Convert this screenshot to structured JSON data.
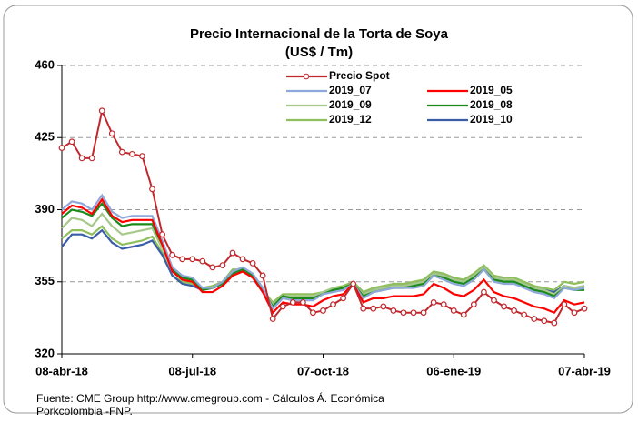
{
  "chart_data": {
    "type": "line",
    "title": "Precio Internacional de la Torta de Soya",
    "subtitle": "(US$ / Tm)",
    "x": [
      "2018-04-08",
      "2018-04-15",
      "2018-04-22",
      "2018-04-29",
      "2018-05-06",
      "2018-05-13",
      "2018-05-20",
      "2018-05-27",
      "2018-06-03",
      "2018-06-10",
      "2018-06-17",
      "2018-06-24",
      "2018-07-01",
      "2018-07-08",
      "2018-07-15",
      "2018-07-22",
      "2018-07-29",
      "2018-08-05",
      "2018-08-12",
      "2018-08-19",
      "2018-08-26",
      "2018-09-02",
      "2018-09-09",
      "2018-09-16",
      "2018-09-23",
      "2018-09-30",
      "2018-10-07",
      "2018-10-14",
      "2018-10-21",
      "2018-10-28",
      "2018-11-04",
      "2018-11-11",
      "2018-11-18",
      "2018-11-25",
      "2018-12-02",
      "2018-12-09",
      "2018-12-16",
      "2018-12-23",
      "2018-12-30",
      "2019-01-06",
      "2019-01-13",
      "2019-01-20",
      "2019-01-27",
      "2019-02-03",
      "2019-02-10",
      "2019-02-17",
      "2019-02-24",
      "2019-03-03",
      "2019-03-10",
      "2019-03-17",
      "2019-03-24",
      "2019-03-31",
      "2019-04-07"
    ],
    "xlim": [
      "2018-04-08",
      "2019-04-07"
    ],
    "xticks": [
      {
        "value": "2018-04-08",
        "label": "08-abr-18"
      },
      {
        "value": "2018-07-08",
        "label": "08-jul-18"
      },
      {
        "value": "2018-10-07",
        "label": "07-oct-18"
      },
      {
        "value": "2019-01-06",
        "label": "06-ene-19"
      },
      {
        "value": "2019-04-07",
        "label": "07-abr-19"
      }
    ],
    "ylim": [
      320,
      460
    ],
    "yticks": [
      320,
      355,
      390,
      425,
      460
    ],
    "grid": true,
    "legend": "top",
    "series": [
      {
        "name": "Precio Spot",
        "color": "#c0282d",
        "values": [
          420,
          423,
          415,
          415,
          438,
          427,
          418,
          417,
          416,
          400,
          378,
          368,
          366,
          366,
          365,
          362,
          363,
          369,
          366,
          364,
          358,
          337,
          343,
          345,
          345,
          340,
          341,
          344,
          347,
          354,
          342,
          342,
          343,
          341,
          340,
          340,
          340,
          345,
          344,
          341,
          339,
          344,
          350,
          346,
          343,
          341,
          339,
          337,
          336,
          335,
          344,
          340,
          342
        ]
      },
      {
        "name": "2019_05",
        "color": "#ff0000",
        "values": [
          388,
          392,
          391,
          388,
          395,
          387,
          384,
          385,
          385,
          385,
          373,
          360,
          356,
          355,
          350,
          350,
          353,
          358,
          360,
          357,
          350,
          340,
          345,
          344,
          344,
          343,
          346,
          348,
          349,
          354,
          345,
          347,
          347,
          348,
          348,
          348,
          349,
          354,
          352,
          349,
          348,
          351,
          356,
          350,
          348,
          347,
          345,
          343,
          342,
          340,
          346,
          344,
          345
        ]
      },
      {
        "name": "2019_07",
        "color": "#8fa8dc",
        "values": [
          390,
          394,
          393,
          390,
          397,
          389,
          386,
          387,
          387,
          387,
          375,
          362,
          358,
          357,
          352,
          352,
          355,
          360,
          362,
          359,
          352,
          342,
          347,
          346,
          346,
          346,
          349,
          350,
          351,
          354,
          347,
          350,
          351,
          352,
          352,
          352,
          353,
          358,
          356,
          354,
          353,
          356,
          361,
          355,
          354,
          354,
          352,
          350,
          349,
          347,
          352,
          351,
          352
        ]
      },
      {
        "name": "2019_08",
        "color": "#1a8a1a",
        "values": [
          386,
          390,
          389,
          387,
          393,
          386,
          382,
          383,
          383,
          383,
          373,
          361,
          357,
          356,
          351,
          352,
          354,
          359,
          361,
          358,
          351,
          343,
          348,
          347,
          347,
          347,
          349,
          351,
          352,
          354,
          348,
          350,
          351,
          352,
          352,
          353,
          354,
          358,
          357,
          355,
          354,
          357,
          361,
          356,
          355,
          355,
          353,
          351,
          350,
          348,
          352,
          351,
          351
        ]
      },
      {
        "name": "2019_09",
        "color": "#a6c98a",
        "values": [
          381,
          386,
          385,
          382,
          388,
          382,
          378,
          379,
          380,
          381,
          371,
          360,
          356,
          355,
          351,
          352,
          354,
          360,
          361,
          358,
          351,
          344,
          348,
          348,
          348,
          348,
          350,
          352,
          352,
          354,
          349,
          351,
          352,
          353,
          353,
          354,
          355,
          359,
          358,
          356,
          355,
          358,
          362,
          357,
          356,
          356,
          354,
          352,
          351,
          349,
          353,
          352,
          353
        ]
      },
      {
        "name": "2019_10",
        "color": "#3a5da8",
        "values": [
          372,
          378,
          378,
          376,
          380,
          374,
          371,
          372,
          373,
          375,
          368,
          358,
          354,
          353,
          351,
          352,
          354,
          360,
          360,
          357,
          350,
          344,
          348,
          348,
          348,
          348,
          349,
          351,
          352,
          354,
          349,
          351,
          352,
          353,
          353,
          354,
          355,
          359,
          358,
          356,
          355,
          358,
          361,
          357,
          356,
          355,
          354,
          352,
          351,
          350,
          353,
          352,
          353
        ]
      },
      {
        "name": "2019_12",
        "color": "#8fbf5a",
        "values": [
          376,
          380,
          380,
          378,
          382,
          376,
          373,
          374,
          375,
          377,
          369,
          358,
          355,
          354,
          352,
          353,
          355,
          361,
          361,
          358,
          351,
          345,
          349,
          349,
          349,
          349,
          350,
          352,
          353,
          355,
          350,
          352,
          353,
          354,
          354,
          355,
          356,
          360,
          359,
          357,
          356,
          359,
          363,
          358,
          357,
          357,
          355,
          353,
          352,
          351,
          355,
          354,
          355
        ]
      }
    ],
    "source": [
      "Fuente: CME  Group http://www.cmegroup.com - Cálculos Á. Económica",
      "Porkcolombia  -FNP."
    ]
  }
}
